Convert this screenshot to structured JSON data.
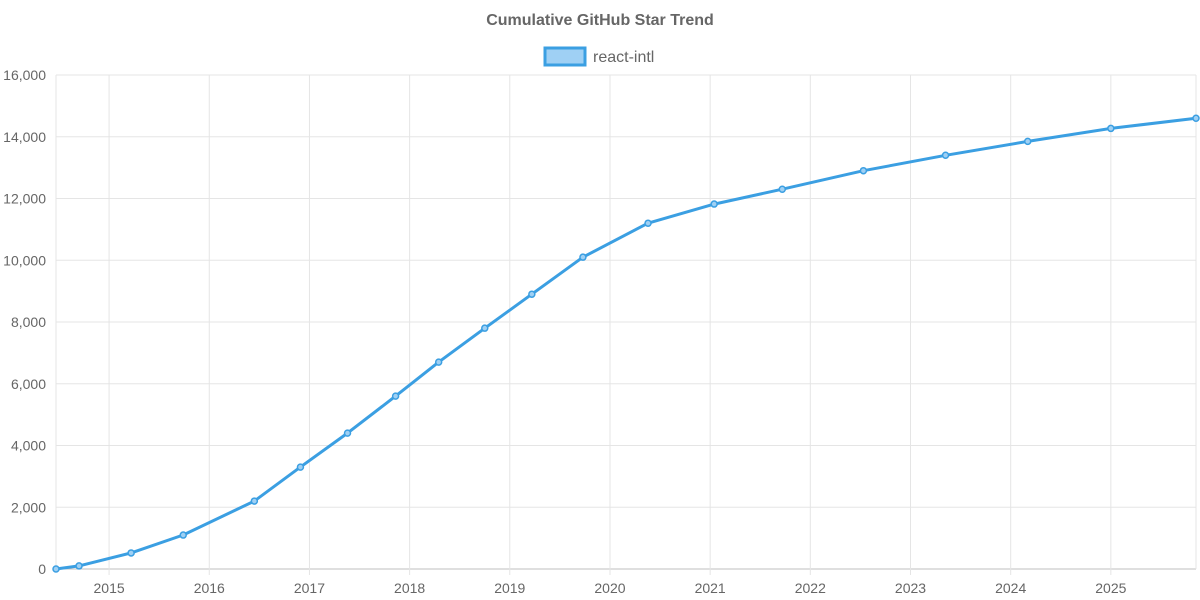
{
  "chart_data": {
    "type": "line",
    "title": "Cumulative GitHub Star Trend",
    "xlabel": "",
    "ylabel": "",
    "ylim": [
      0,
      16000
    ],
    "xlim": [
      2014.47,
      2025.85
    ],
    "x_ticks": [
      "2015",
      "2016",
      "2017",
      "2018",
      "2019",
      "2020",
      "2021",
      "2022",
      "2023",
      "2024",
      "2025"
    ],
    "y_ticks": [
      "0",
      "2,000",
      "4,000",
      "6,000",
      "8,000",
      "10,000",
      "12,000",
      "14,000",
      "16,000"
    ],
    "grid": true,
    "legend_position": "top-center",
    "colors": {
      "line": "#3b9fe2",
      "fill": "#9fd0f4"
    },
    "series": [
      {
        "name": "react-intl",
        "x": [
          2014.47,
          2014.7,
          2015.22,
          2015.74,
          2016.45,
          2016.91,
          2017.38,
          2017.86,
          2018.29,
          2018.75,
          2019.22,
          2019.73,
          2020.38,
          2021.04,
          2021.72,
          2022.53,
          2023.35,
          2024.17,
          2025.0,
          2025.85
        ],
        "values": [
          0,
          100,
          520,
          1100,
          2200,
          3300,
          4400,
          5600,
          6700,
          7800,
          8900,
          10100,
          11200,
          11820,
          12300,
          12900,
          13400,
          13850,
          14270,
          14600
        ]
      }
    ]
  }
}
